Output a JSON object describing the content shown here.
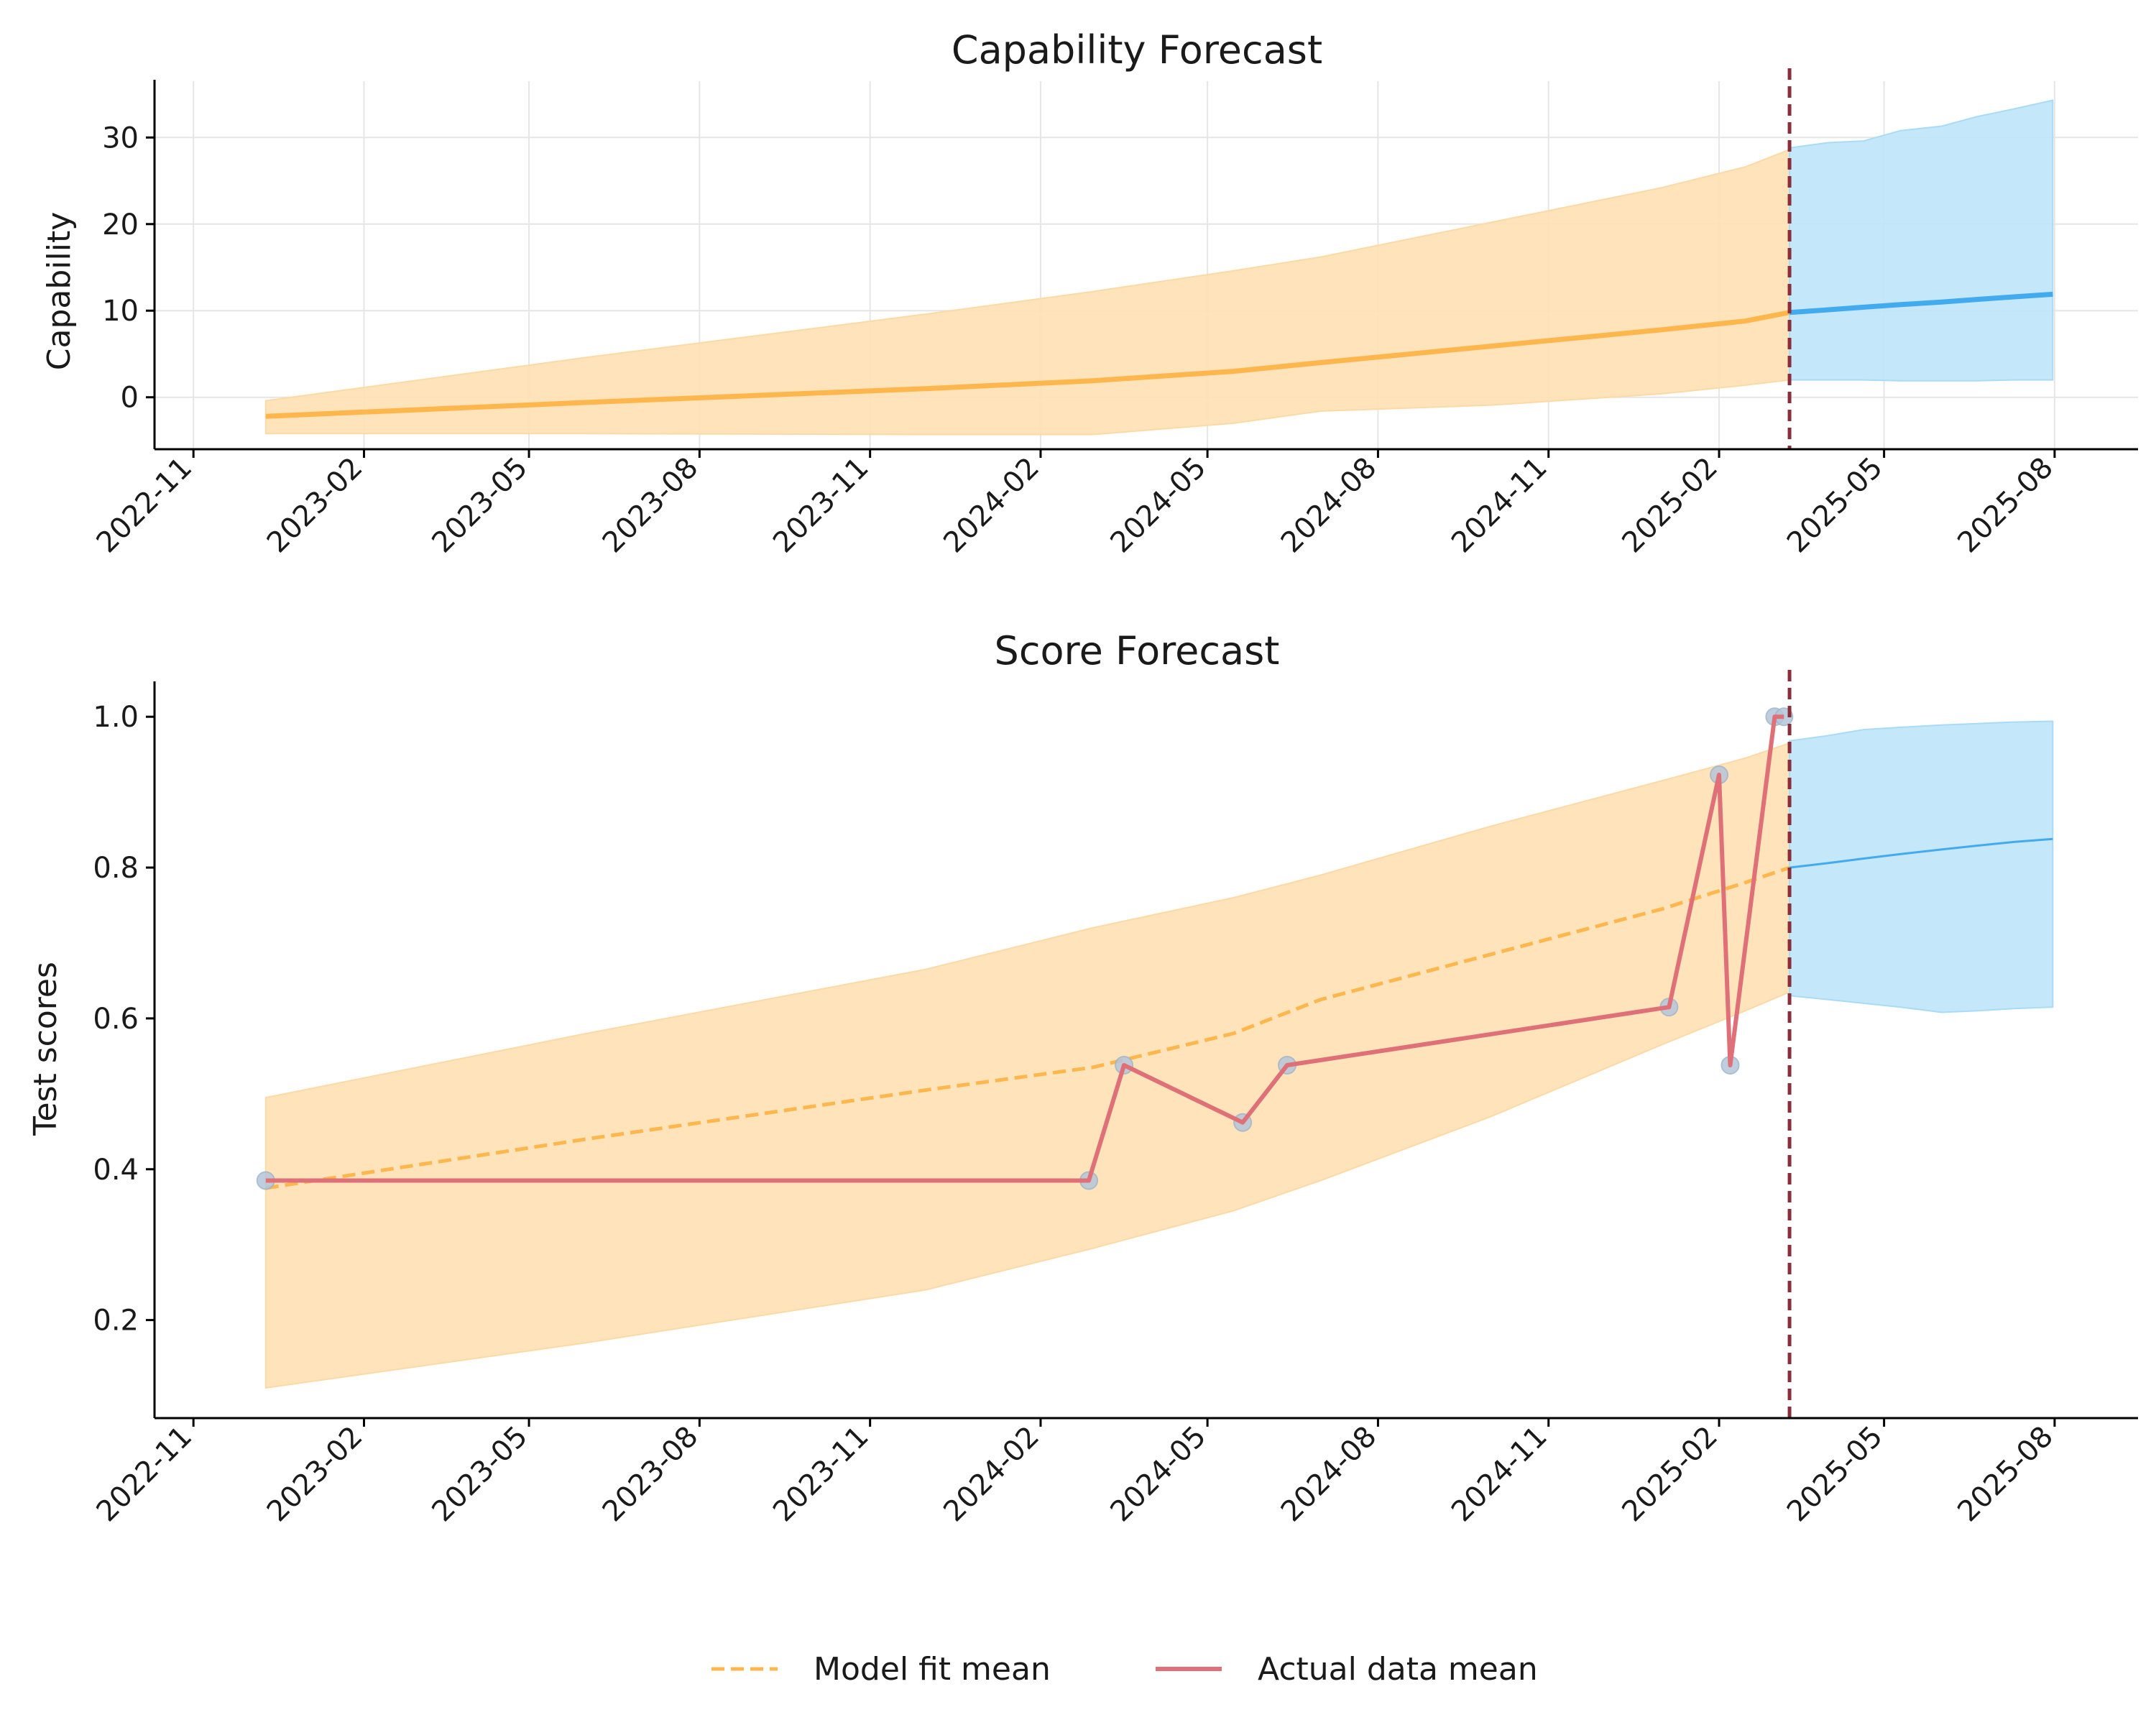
{
  "colors": {
    "fit": "#FFB74D",
    "fit_band": "#FFE0B2",
    "forecast": "#42AAEE",
    "forecast_band": "#BFE4FA",
    "actual": "#E07078",
    "marker": "#B4C6DA",
    "cutoff": "#8B2E3C",
    "grid": "#E6E6E6"
  },
  "legend": {
    "fit_label": "Model fit mean",
    "actual_label": "Actual data mean"
  },
  "chart_data": [
    {
      "type": "line",
      "title": "Capability Forecast",
      "xlabel": "",
      "ylabel": "Capability",
      "grid": true,
      "x_ticks": [
        "2022-11-01",
        "2023-02-01",
        "2023-05-01",
        "2023-08-01",
        "2023-11-01",
        "2024-02-01",
        "2024-05-01",
        "2024-08-01",
        "2024-11-01",
        "2025-02-01",
        "2025-05-01",
        "2025-08-01"
      ],
      "x_tick_labels": [
        "2022-11",
        "2023-02",
        "2023-05",
        "2023-08",
        "2023-11",
        "2024-02",
        "2024-05",
        "2024-08",
        "2024-11",
        "2025-02",
        "2025-05",
        "2025-08"
      ],
      "xlim": [
        "2022-10-11",
        "2025-09-15"
      ],
      "ylim": [
        -6,
        36.5
      ],
      "y_ticks": [
        0,
        10,
        20,
        30
      ],
      "forecast_start": "2025-03-11",
      "series": [
        {
          "role": "model_fit",
          "x": [
            "2022-12-10",
            "2023-06-01",
            "2023-12-01",
            "2024-02-29",
            "2024-05-15",
            "2024-07-01",
            "2024-10-01",
            "2025-01-01",
            "2025-02-15",
            "2025-03-11"
          ],
          "y": [
            -2.2,
            -0.6,
            1.0,
            1.9,
            3.0,
            4.0,
            5.9,
            7.8,
            8.8,
            9.8
          ],
          "lower": [
            -4.2,
            -4.2,
            -4.3,
            -4.3,
            -3.0,
            -1.6,
            -0.9,
            0.4,
            1.4,
            2.0
          ],
          "upper": [
            -0.4,
            4.6,
            9.6,
            12.2,
            14.6,
            16.2,
            20.2,
            24.2,
            26.6,
            28.6
          ]
        },
        {
          "role": "forecast",
          "x": [
            "2025-03-11",
            "2025-04-01",
            "2025-04-20",
            "2025-05-10",
            "2025-06-01",
            "2025-06-20",
            "2025-07-10",
            "2025-07-31"
          ],
          "y": [
            9.8,
            10.1,
            10.4,
            10.7,
            11.0,
            11.3,
            11.6,
            11.9
          ],
          "lower": [
            2.0,
            2.0,
            2.0,
            1.9,
            1.9,
            1.9,
            2.0,
            2.0
          ],
          "upper": [
            28.8,
            29.4,
            29.6,
            30.8,
            31.3,
            32.4,
            33.3,
            34.3
          ]
        }
      ]
    },
    {
      "type": "line",
      "title": "Score Forecast",
      "xlabel": "",
      "ylabel": "Test scores",
      "grid": false,
      "x_ticks": [
        "2022-11-01",
        "2023-02-01",
        "2023-05-01",
        "2023-08-01",
        "2023-11-01",
        "2024-02-01",
        "2024-05-01",
        "2024-08-01",
        "2024-11-01",
        "2025-02-01",
        "2025-05-01",
        "2025-08-01"
      ],
      "x_tick_labels": [
        "2022-11",
        "2023-02",
        "2023-05",
        "2023-08",
        "2023-11",
        "2024-02",
        "2024-05",
        "2024-08",
        "2024-11",
        "2025-02",
        "2025-05",
        "2025-08"
      ],
      "xlim": [
        "2022-10-11",
        "2025-09-15"
      ],
      "ylim": [
        0.07,
        1.045
      ],
      "y_ticks": [
        0.2,
        0.4,
        0.6,
        0.8,
        1.0
      ],
      "y_tick_labels": [
        "0.2",
        "0.4",
        "0.6",
        "0.8",
        "1.0"
      ],
      "forecast_start": "2025-03-11",
      "series": [
        {
          "name": "Model fit mean",
          "role": "model_fit",
          "x": [
            "2022-12-10",
            "2023-06-01",
            "2023-12-01",
            "2024-02-29",
            "2024-05-15",
            "2024-07-01",
            "2024-10-01",
            "2025-01-01",
            "2025-02-15",
            "2025-03-11"
          ],
          "y": [
            0.375,
            0.44,
            0.505,
            0.535,
            0.58,
            0.625,
            0.685,
            0.745,
            0.78,
            0.8
          ],
          "lower": [
            0.11,
            0.17,
            0.24,
            0.295,
            0.345,
            0.385,
            0.47,
            0.565,
            0.61,
            0.635
          ],
          "upper": [
            0.495,
            0.58,
            0.665,
            0.72,
            0.76,
            0.79,
            0.855,
            0.915,
            0.945,
            0.965
          ]
        },
        {
          "role": "forecast",
          "x": [
            "2025-03-11",
            "2025-04-01",
            "2025-04-20",
            "2025-05-10",
            "2025-06-01",
            "2025-06-20",
            "2025-07-10",
            "2025-07-31"
          ],
          "y": [
            0.8,
            0.806,
            0.812,
            0.818,
            0.824,
            0.829,
            0.834,
            0.838
          ],
          "lower": [
            0.63,
            0.625,
            0.62,
            0.615,
            0.608,
            0.61,
            0.613,
            0.615
          ],
          "upper": [
            0.968,
            0.975,
            0.983,
            0.986,
            0.989,
            0.991,
            0.993,
            0.994
          ]
        },
        {
          "name": "Actual data mean",
          "role": "actual",
          "x": [
            "2022-12-10",
            "2024-02-27",
            "2024-03-17",
            "2024-05-20",
            "2024-06-13",
            "2025-01-05",
            "2025-02-01",
            "2025-02-07",
            "2025-03-03",
            "2025-03-08"
          ],
          "y": [
            0.385,
            0.385,
            0.538,
            0.462,
            0.538,
            0.615,
            0.923,
            0.538,
            1.0,
            1.0
          ]
        }
      ]
    }
  ]
}
